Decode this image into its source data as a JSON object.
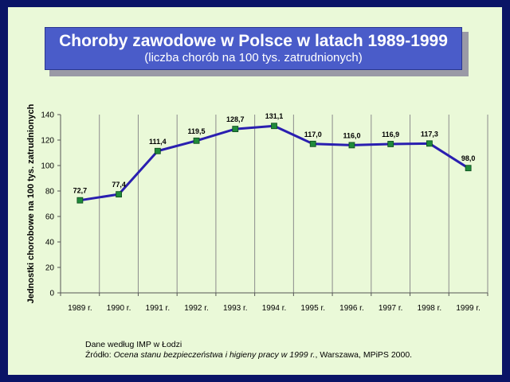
{
  "title": "Choroby zawodowe w Polsce w latach 1989-1999",
  "subtitle": "(liczba chorób na 100 tys. zatrudnionych)",
  "chart_data": {
    "type": "line",
    "categories": [
      "1989 r.",
      "1990 r.",
      "1991 r.",
      "1992 r.",
      "1993 r.",
      "1994 r.",
      "1995 r.",
      "1996 r.",
      "1997 r.",
      "1998 r.",
      "1999 r."
    ],
    "values": [
      72.7,
      77.4,
      111.4,
      119.5,
      128.7,
      131.1,
      117.0,
      116.0,
      116.9,
      117.3,
      98.0
    ],
    "labels": [
      "72,7",
      "77,4",
      "111,4",
      "119,5",
      "128,7",
      "131,1",
      "117,0",
      "116,0",
      "116,9",
      "117,3",
      "98,0"
    ],
    "ylabel": "Jednostki chorobowe na 100 tys. zatrudnionych",
    "xlabel": "",
    "ylim": [
      0,
      140
    ],
    "yticks": [
      0,
      20,
      40,
      60,
      80,
      100,
      120,
      140
    ],
    "grid": "vertical",
    "line_color": "#2a1fb0",
    "marker_color": "#1f8a3a"
  },
  "source": {
    "line1": "Dane według IMP w Łodzi",
    "prefix": "Źródło: ",
    "italic": "Ocena stanu bezpieczeństwa i higieny pracy w 1999 r.",
    "suffix": ", Warszawa, MPiPS 2000."
  }
}
